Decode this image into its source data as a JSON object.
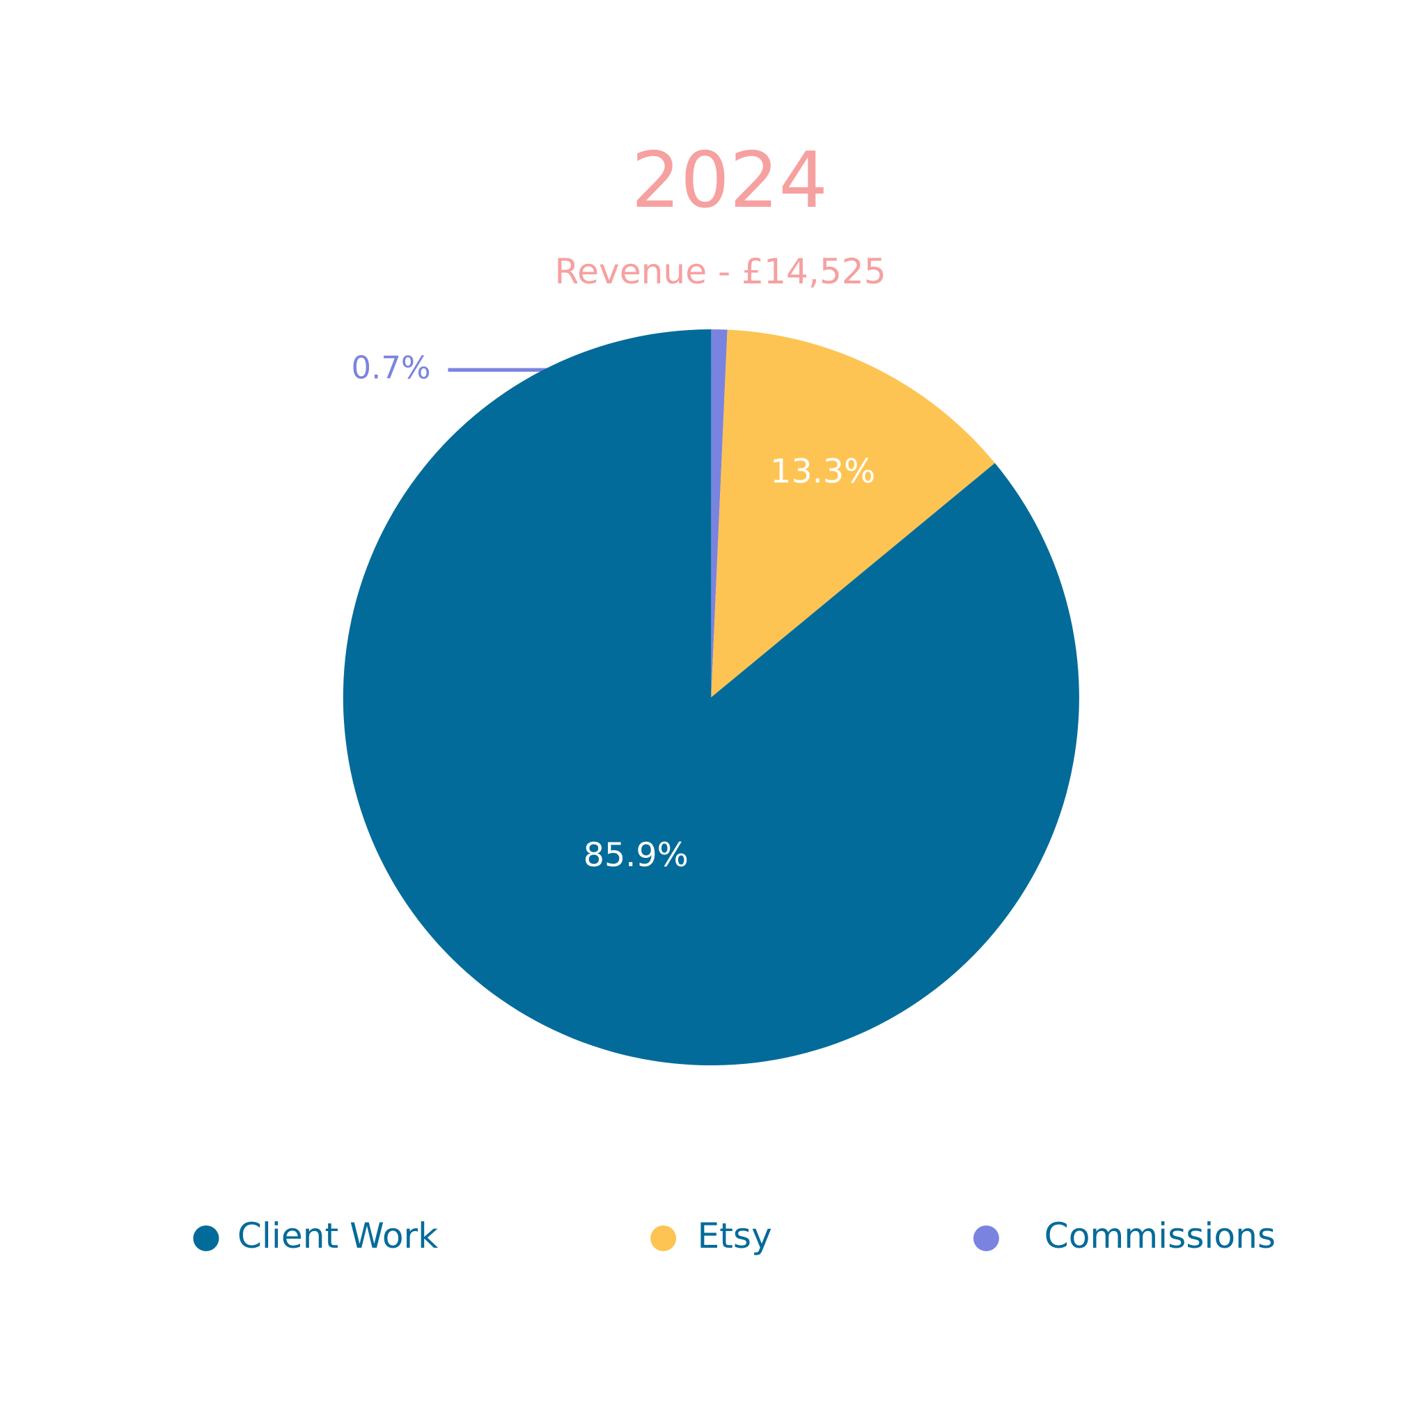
{
  "chart_data": {
    "type": "pie",
    "title": "2024",
    "subtitle": "Revenue - £14,525",
    "categories": [
      "Client Work",
      "Etsy",
      "Commissions"
    ],
    "values": [
      85.9,
      13.3,
      0.7
    ],
    "value_labels": [
      "85.9%",
      "13.3%",
      "0.7%"
    ],
    "colors": [
      "#036b99",
      "#fdc453",
      "#7b83e0"
    ],
    "legend": "bottom"
  }
}
